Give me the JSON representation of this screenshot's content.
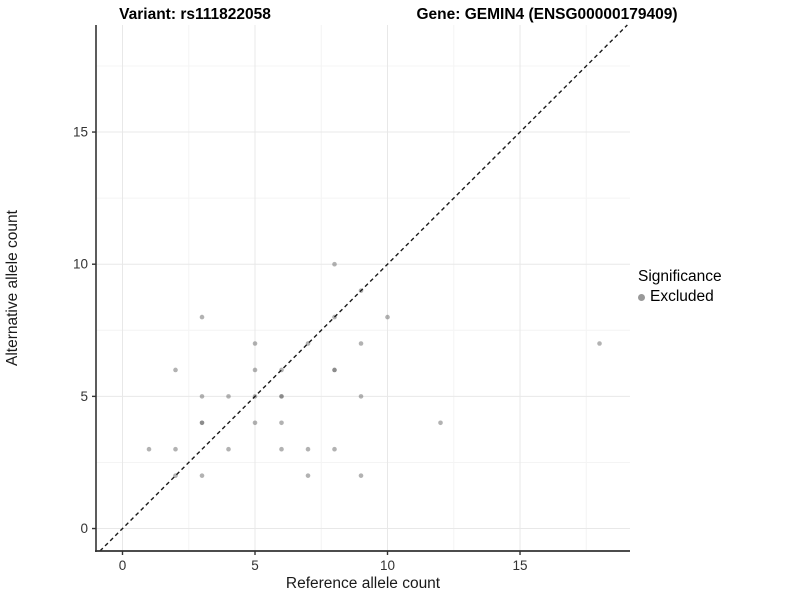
{
  "chart_data": {
    "type": "scatter",
    "titles": [
      "Variant: rs111822058",
      "Gene: GEMIN4 (ENSG00000179409)"
    ],
    "xlabel": "Reference allele count",
    "ylabel": "Alternative allele count",
    "x_ticks": [
      0,
      5,
      10,
      15
    ],
    "y_ticks": [
      0,
      5,
      10,
      15
    ],
    "x_minor_ticks": [
      2.5,
      7.5,
      12.5,
      17.5
    ],
    "y_minor_ticks": [
      2.5,
      7.5,
      12.5,
      17.5
    ],
    "xlim": [
      -1.0,
      19.15
    ],
    "ylim": [
      -0.85,
      19.05
    ],
    "grid": "major and minor gridlines, white background",
    "identity_line": {
      "slope": 1,
      "intercept": 0,
      "style": "dashed"
    },
    "legend": {
      "title": "Significance",
      "position": "right",
      "items": [
        {
          "label": "Excluded",
          "color": "#999999"
        }
      ]
    },
    "series": [
      {
        "name": "Excluded",
        "marker": "circle",
        "color": "#666666",
        "base_opacity": 0.5,
        "points": [
          {
            "x": 1,
            "y": 3,
            "count": 1
          },
          {
            "x": 2,
            "y": 2,
            "count": 1
          },
          {
            "x": 2,
            "y": 3,
            "count": 1
          },
          {
            "x": 2,
            "y": 6,
            "count": 1
          },
          {
            "x": 3,
            "y": 2,
            "count": 1
          },
          {
            "x": 3,
            "y": 4,
            "count": 2
          },
          {
            "x": 3,
            "y": 5,
            "count": 1
          },
          {
            "x": 3,
            "y": 8,
            "count": 1
          },
          {
            "x": 4,
            "y": 3,
            "count": 1
          },
          {
            "x": 4,
            "y": 5,
            "count": 1
          },
          {
            "x": 5,
            "y": 4,
            "count": 1
          },
          {
            "x": 5,
            "y": 5,
            "count": 1
          },
          {
            "x": 5,
            "y": 6,
            "count": 1
          },
          {
            "x": 5,
            "y": 7,
            "count": 1
          },
          {
            "x": 6,
            "y": 3,
            "count": 1
          },
          {
            "x": 6,
            "y": 4,
            "count": 1
          },
          {
            "x": 6,
            "y": 5,
            "count": 2
          },
          {
            "x": 6,
            "y": 6,
            "count": 1
          },
          {
            "x": 7,
            "y": 2,
            "count": 1
          },
          {
            "x": 7,
            "y": 3,
            "count": 1
          },
          {
            "x": 7,
            "y": 7,
            "count": 1
          },
          {
            "x": 8,
            "y": 3,
            "count": 1
          },
          {
            "x": 8,
            "y": 6,
            "count": 2
          },
          {
            "x": 8,
            "y": 8,
            "count": 1
          },
          {
            "x": 8,
            "y": 10,
            "count": 1
          },
          {
            "x": 9,
            "y": 2,
            "count": 1
          },
          {
            "x": 9,
            "y": 5,
            "count": 1
          },
          {
            "x": 9,
            "y": 7,
            "count": 1
          },
          {
            "x": 9,
            "y": 9,
            "count": 1
          },
          {
            "x": 10,
            "y": 8,
            "count": 1
          },
          {
            "x": 12,
            "y": 4,
            "count": 1
          },
          {
            "x": 18,
            "y": 7,
            "count": 1
          }
        ]
      }
    ]
  },
  "colors": {
    "background": "#ffffff",
    "grid_major": "#e8e8e8",
    "grid_minor": "#f4f4f4",
    "axis_line": "#333333",
    "tick_label": "#333333",
    "point": "#666666",
    "identity_line": "#1a1a1a",
    "legend_key": "#999999"
  }
}
